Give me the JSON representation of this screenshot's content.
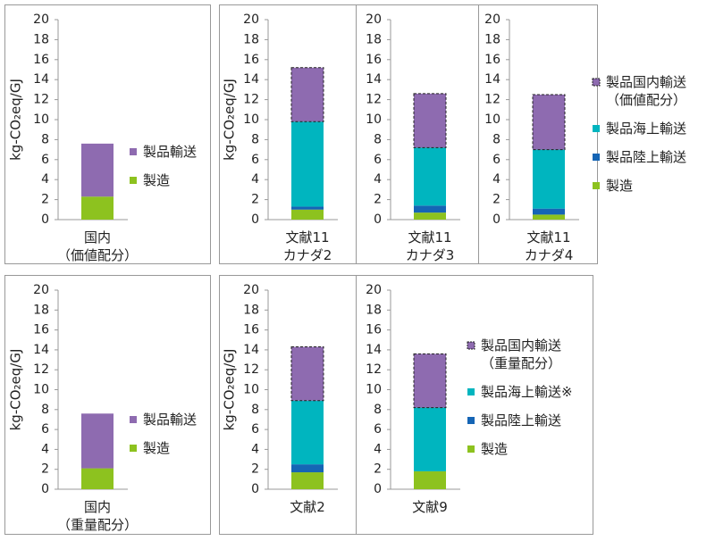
{
  "chart_data": [
    {
      "type": "bar",
      "stacked": true,
      "ylabel": "kg-CO₂eq/GJ",
      "ylim": [
        0,
        20
      ],
      "yticks": [
        0,
        2,
        4,
        6,
        8,
        10,
        12,
        14,
        16,
        18,
        20
      ],
      "categories": [
        "国内\n（価値配分）"
      ],
      "series": [
        {
          "name": "製造",
          "color": "#8dc21f",
          "values": [
            2.3
          ]
        },
        {
          "name": "製品輸送",
          "color": "#8e6bb0",
          "values": [
            5.3
          ]
        }
      ]
    },
    {
      "type": "bar",
      "stacked": true,
      "ylabel": "kg-CO₂eq/GJ",
      "ylim": [
        0,
        20
      ],
      "yticks": [
        0,
        2,
        4,
        6,
        8,
        10,
        12,
        14,
        16,
        18,
        20
      ],
      "categories": [
        "文献11\nカナダ2",
        "文献11\nカナダ3",
        "文献11\nカナダ4"
      ],
      "series": [
        {
          "name": "製造",
          "color": "#8dc21f",
          "values": [
            1.0,
            0.7,
            0.5
          ]
        },
        {
          "name": "製品陸上輸送",
          "color": "#1565b5",
          "values": [
            0.3,
            0.7,
            0.6
          ]
        },
        {
          "name": "製品海上輸送",
          "color": "#00b5bf",
          "values": [
            8.5,
            5.8,
            5.9
          ]
        },
        {
          "name": "製品国内輸送\n（価値配分）",
          "color": "#8e6bb0",
          "dashed": true,
          "values": [
            5.4,
            5.4,
            5.5
          ]
        }
      ]
    },
    {
      "type": "bar",
      "stacked": true,
      "ylabel": "kg-CO₂eq/GJ",
      "ylim": [
        0,
        20
      ],
      "yticks": [
        0,
        2,
        4,
        6,
        8,
        10,
        12,
        14,
        16,
        18,
        20
      ],
      "categories": [
        "国内\n（重量配分）"
      ],
      "series": [
        {
          "name": "製造",
          "color": "#8dc21f",
          "values": [
            2.1
          ]
        },
        {
          "name": "製品輸送",
          "color": "#8e6bb0",
          "values": [
            5.5
          ]
        }
      ]
    },
    {
      "type": "bar",
      "stacked": true,
      "ylabel": "kg-CO₂eq/GJ",
      "ylim": [
        0,
        20
      ],
      "yticks": [
        0,
        2,
        4,
        6,
        8,
        10,
        12,
        14,
        16,
        18,
        20
      ],
      "categories": [
        "文献2",
        "文献9"
      ],
      "series": [
        {
          "name": "製造",
          "color": "#8dc21f",
          "values": [
            1.7,
            1.8
          ]
        },
        {
          "name": "製品陸上輸送",
          "color": "#1565b5",
          "values": [
            0.8,
            0
          ]
        },
        {
          "name": "製品海上輸送※",
          "color": "#00b5bf",
          "values": [
            6.4,
            6.4
          ]
        },
        {
          "name": "製品国内輸送\n（重量配分）",
          "color": "#8e6bb0",
          "dashed": true,
          "values": [
            5.4,
            5.4
          ]
        }
      ]
    }
  ]
}
